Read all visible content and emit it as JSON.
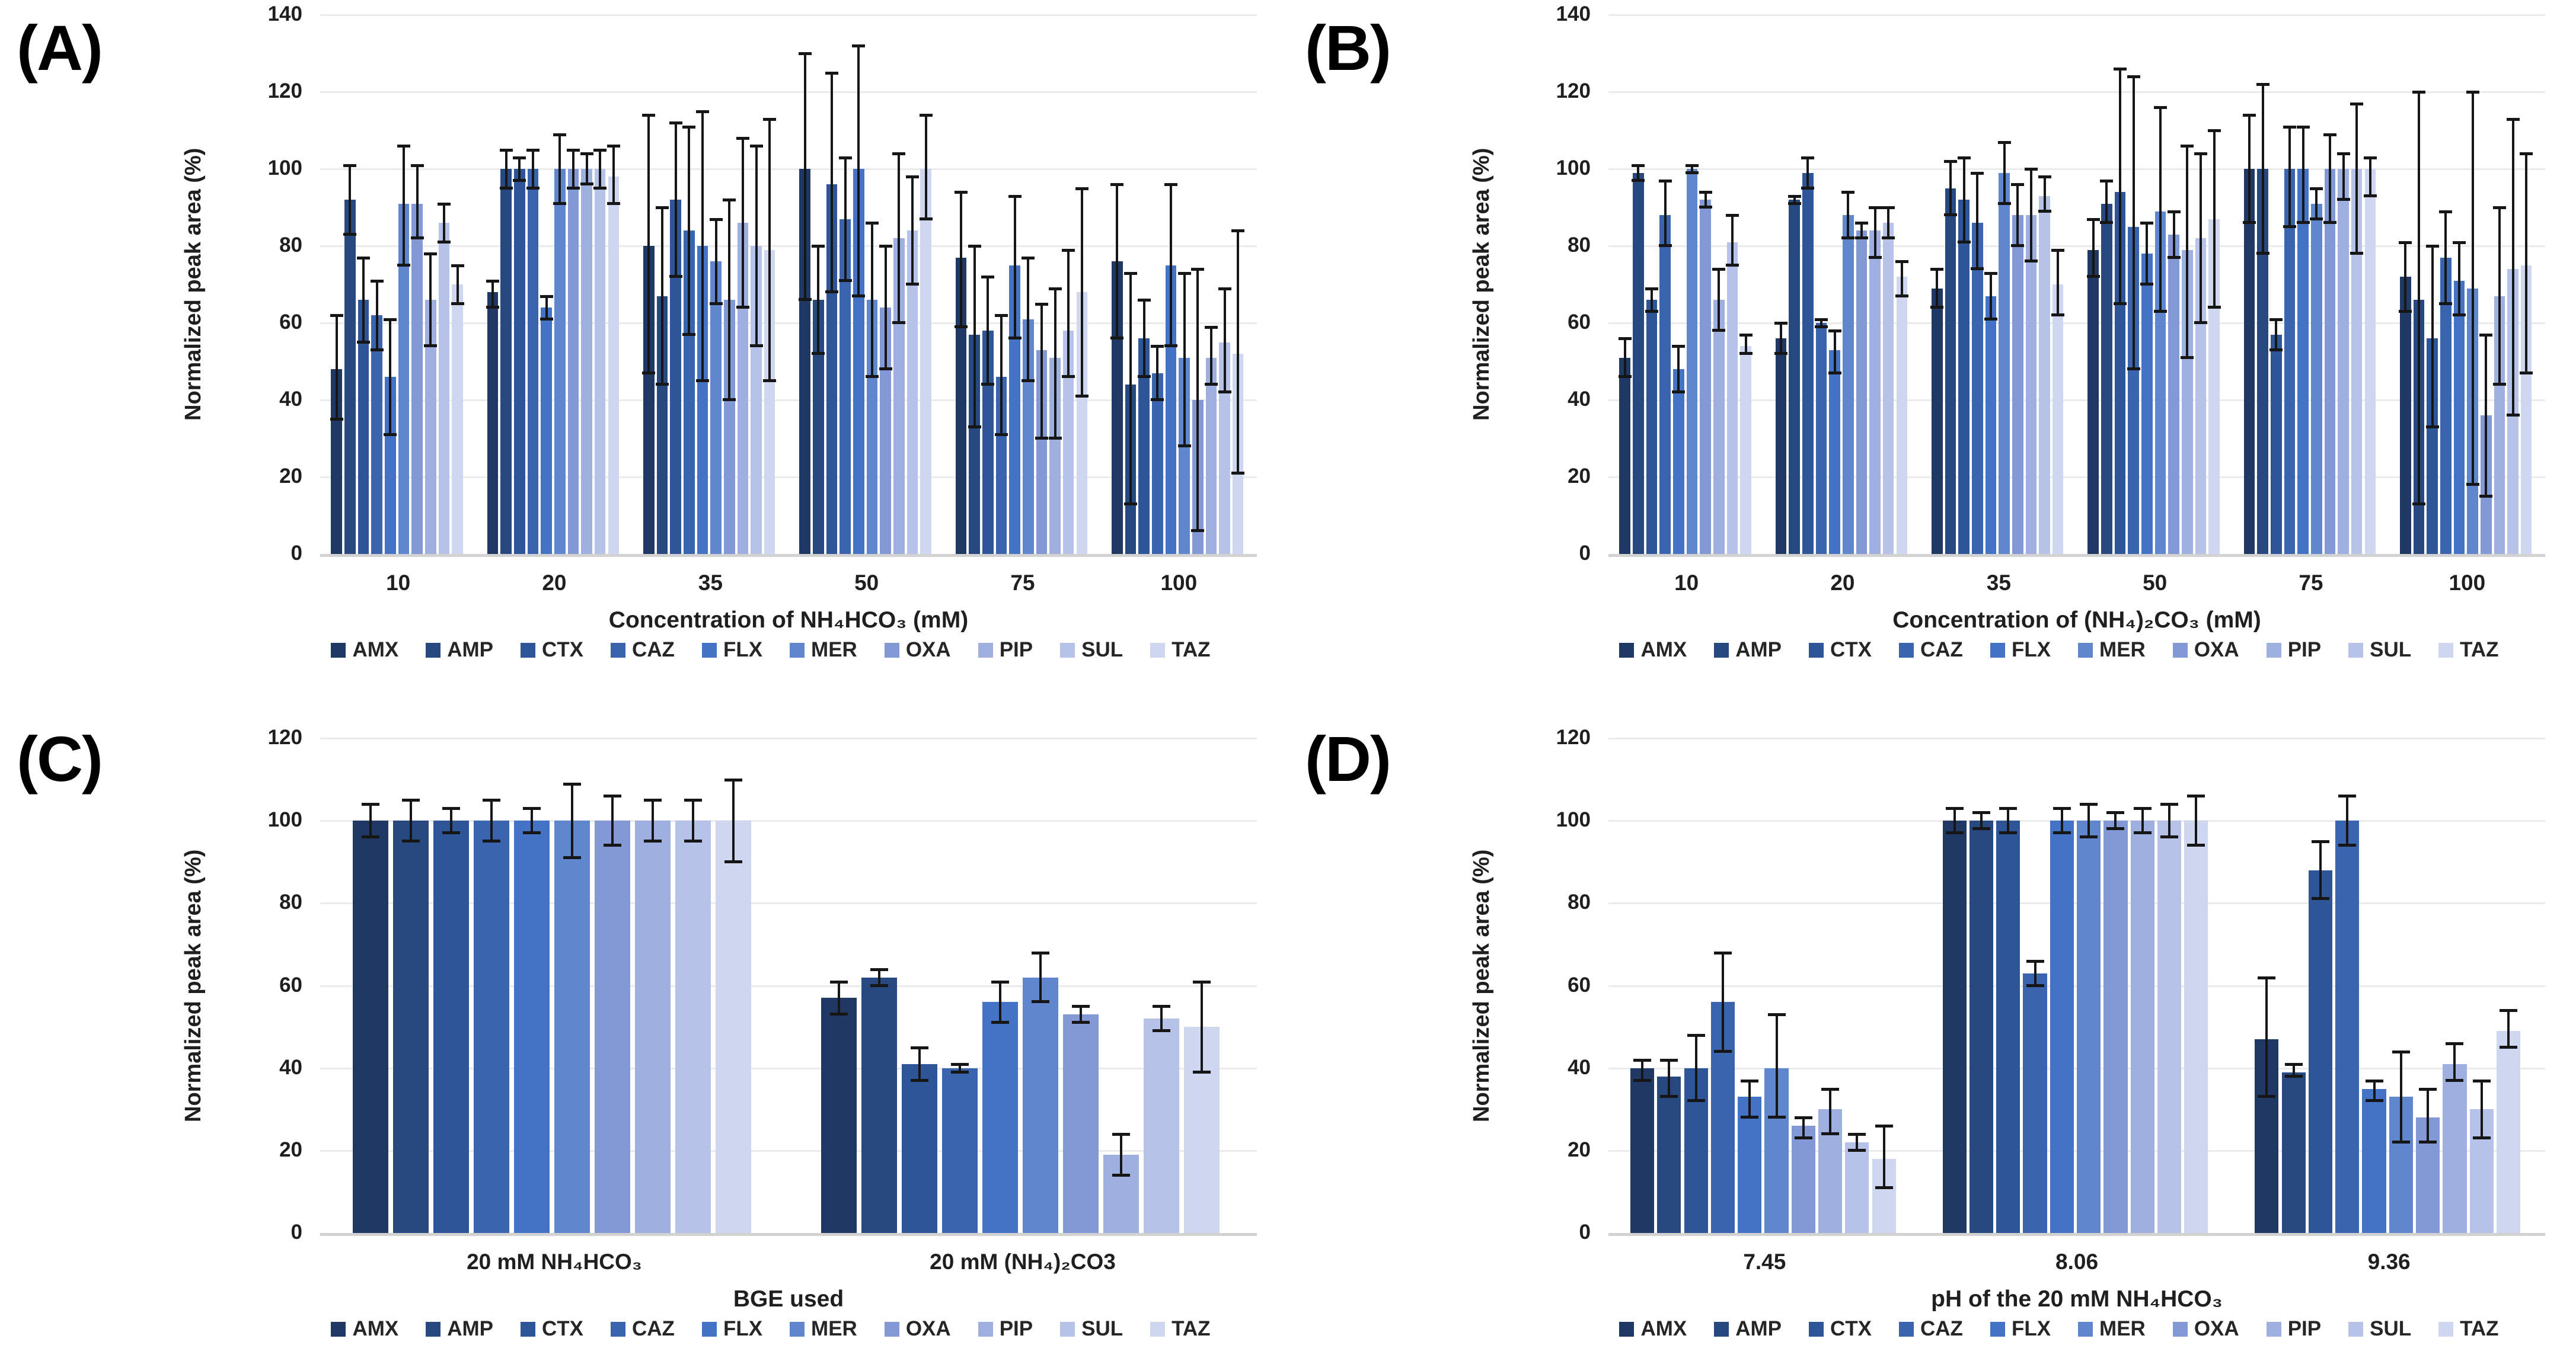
{
  "figure": {
    "background": "#ffffff",
    "error_bar_color": "#161616",
    "gridline_color": "#ebebeb",
    "axis_line_color": "#d2d2d2"
  },
  "series_names": [
    "AMX",
    "AMP",
    "CTX",
    "CAZ",
    "FLX",
    "MER",
    "OXA",
    "PIP",
    "SUL",
    "TAZ"
  ],
  "series_colors": [
    "#203864",
    "#27497F",
    "#2E5597",
    "#3A64AE",
    "#4472C4",
    "#6086CE",
    "#8399D6",
    "#9FAFDF",
    "#B7C2E8",
    "#CFD7F0"
  ],
  "chart_data": [
    {
      "id": "a",
      "panel_label": "(A)",
      "type": "bar",
      "title": "",
      "ylabel": "Normalized peak area (%)",
      "xlabel": "Concentration of NH₄HCO₃ (mM)",
      "ylim": [
        0,
        140
      ],
      "ytick_step": 20,
      "grid": true,
      "legend_position": "bottom",
      "categories": [
        "10",
        "20",
        "35",
        "50",
        "75",
        "100"
      ],
      "series": [
        {
          "name": "AMX",
          "color": "#203864",
          "values": [
            48,
            68,
            80,
            100,
            77,
            76
          ],
          "err_lo": [
            35,
            64,
            47,
            66,
            59,
            56
          ],
          "err_hi": [
            62,
            71,
            114,
            130,
            94,
            96
          ]
        },
        {
          "name": "AMP",
          "color": "#27497F",
          "values": [
            92,
            100,
            67,
            66,
            57,
            44
          ],
          "err_lo": [
            83,
            95,
            44,
            52,
            33,
            13
          ],
          "err_hi": [
            101,
            105,
            90,
            80,
            80,
            73
          ]
        },
        {
          "name": "CTX",
          "color": "#2E5597",
          "values": [
            66,
            100,
            92,
            96,
            58,
            56
          ],
          "err_lo": [
            55,
            97,
            72,
            68,
            44,
            46
          ],
          "err_hi": [
            77,
            103,
            112,
            125,
            72,
            66
          ]
        },
        {
          "name": "CAZ",
          "color": "#3A64AE",
          "values": [
            62,
            100,
            84,
            87,
            46,
            47
          ],
          "err_lo": [
            53,
            95,
            57,
            71,
            31,
            40
          ],
          "err_hi": [
            71,
            105,
            111,
            103,
            62,
            54
          ]
        },
        {
          "name": "FLX",
          "color": "#4472C4",
          "values": [
            46,
            64,
            80,
            100,
            75,
            75
          ],
          "err_lo": [
            31,
            61,
            45,
            67,
            56,
            54
          ],
          "err_hi": [
            61,
            67,
            115,
            132,
            93,
            96
          ]
        },
        {
          "name": "MER",
          "color": "#6086CE",
          "values": [
            91,
            100,
            76,
            66,
            61,
            51
          ],
          "err_lo": [
            75,
            91,
            65,
            46,
            45,
            28
          ],
          "err_hi": [
            106,
            109,
            87,
            86,
            77,
            73
          ]
        },
        {
          "name": "OXA",
          "color": "#8399D6",
          "values": [
            91,
            100,
            66,
            64,
            53,
            40
          ],
          "err_lo": [
            82,
            95,
            40,
            48,
            30,
            6
          ],
          "err_hi": [
            101,
            105,
            92,
            80,
            65,
            74
          ]
        },
        {
          "name": "PIP",
          "color": "#9FAFDF",
          "values": [
            66,
            100,
            86,
            82,
            51,
            51
          ],
          "err_lo": [
            54,
            96,
            64,
            60,
            30,
            44
          ],
          "err_hi": [
            78,
            104,
            108,
            104,
            69,
            59
          ]
        },
        {
          "name": "SUL",
          "color": "#B7C2E8",
          "values": [
            86,
            100,
            80,
            84,
            58,
            55
          ],
          "err_lo": [
            81,
            95,
            54,
            70,
            46,
            42
          ],
          "err_hi": [
            91,
            105,
            106,
            98,
            79,
            69
          ]
        },
        {
          "name": "TAZ",
          "color": "#CFD7F0",
          "values": [
            70,
            98,
            79,
            100,
            68,
            52
          ],
          "err_lo": [
            65,
            91,
            45,
            87,
            41,
            21
          ],
          "err_hi": [
            75,
            106,
            113,
            114,
            95,
            84
          ]
        }
      ]
    },
    {
      "id": "b",
      "panel_label": "(B)",
      "type": "bar",
      "title": "",
      "ylabel": "Normalized peak area (%)",
      "xlabel": "Concentration of (NH₄)₂CO₃ (mM)",
      "ylim": [
        0,
        140
      ],
      "ytick_step": 20,
      "grid": true,
      "legend_position": "bottom",
      "categories": [
        "10",
        "20",
        "35",
        "50",
        "75",
        "100"
      ],
      "series": [
        {
          "name": "AMX",
          "color": "#203864",
          "values": [
            51,
            56,
            69,
            79,
            100,
            72
          ],
          "err_lo": [
            46,
            52,
            64,
            72,
            86,
            63
          ],
          "err_hi": [
            56,
            60,
            74,
            87,
            114,
            81
          ]
        },
        {
          "name": "AMP",
          "color": "#27497F",
          "values": [
            99,
            92,
            95,
            91,
            100,
            66
          ],
          "err_lo": [
            97,
            91,
            88,
            86,
            78,
            13
          ],
          "err_hi": [
            101,
            93,
            102,
            97,
            122,
            120
          ]
        },
        {
          "name": "CTX",
          "color": "#2E5597",
          "values": [
            66,
            99,
            92,
            94,
            57,
            56
          ],
          "err_lo": [
            63,
            95,
            81,
            65,
            53,
            33
          ],
          "err_hi": [
            69,
            103,
            103,
            126,
            61,
            80
          ]
        },
        {
          "name": "CAZ",
          "color": "#3A64AE",
          "values": [
            88,
            60,
            86,
            85,
            100,
            77
          ],
          "err_lo": [
            80,
            59,
            74,
            48,
            85,
            65
          ],
          "err_hi": [
            97,
            61,
            99,
            124,
            111,
            89
          ]
        },
        {
          "name": "FLX",
          "color": "#4472C4",
          "values": [
            48,
            53,
            67,
            78,
            100,
            71
          ],
          "err_lo": [
            42,
            47,
            61,
            70,
            86,
            62
          ],
          "err_hi": [
            54,
            58,
            73,
            86,
            111,
            81
          ]
        },
        {
          "name": "MER",
          "color": "#6086CE",
          "values": [
            100,
            88,
            99,
            89,
            91,
            69
          ],
          "err_lo": [
            99,
            82,
            91,
            63,
            87,
            18
          ],
          "err_hi": [
            101,
            94,
            107,
            116,
            95,
            120
          ]
        },
        {
          "name": "OXA",
          "color": "#8399D6",
          "values": [
            92,
            84,
            88,
            83,
            100,
            36
          ],
          "err_lo": [
            90,
            82,
            80,
            77,
            86,
            15
          ],
          "err_hi": [
            94,
            86,
            96,
            89,
            109,
            57
          ]
        },
        {
          "name": "PIP",
          "color": "#9FAFDF",
          "values": [
            66,
            84,
            88,
            79,
            100,
            67
          ],
          "err_lo": [
            58,
            77,
            76,
            51,
            92,
            44
          ],
          "err_hi": [
            74,
            90,
            100,
            106,
            104,
            90
          ]
        },
        {
          "name": "SUL",
          "color": "#B7C2E8",
          "values": [
            81,
            86,
            93,
            82,
            100,
            74
          ],
          "err_lo": [
            75,
            82,
            89,
            60,
            78,
            36
          ],
          "err_hi": [
            88,
            90,
            98,
            104,
            117,
            113
          ]
        },
        {
          "name": "TAZ",
          "color": "#CFD7F0",
          "values": [
            54,
            72,
            70,
            87,
            100,
            75
          ],
          "err_lo": [
            52,
            67,
            62,
            64,
            93,
            47
          ],
          "err_hi": [
            57,
            76,
            79,
            110,
            103,
            104
          ]
        }
      ]
    },
    {
      "id": "c",
      "panel_label": "(C)",
      "type": "bar",
      "title": "",
      "ylabel": "Normalized peak area (%)",
      "xlabel": "BGE used",
      "ylim": [
        0,
        120
      ],
      "ytick_step": 20,
      "grid": true,
      "legend_position": "bottom",
      "categories": [
        "20 mM NH₄HCO₃",
        "20 mM (NH₄)₂CO3"
      ],
      "series": [
        {
          "name": "AMX",
          "color": "#203864",
          "values": [
            100,
            57
          ],
          "err_lo": [
            96,
            53
          ],
          "err_hi": [
            104,
            61
          ]
        },
        {
          "name": "AMP",
          "color": "#27497F",
          "values": [
            100,
            62
          ],
          "err_lo": [
            95,
            60
          ],
          "err_hi": [
            105,
            64
          ]
        },
        {
          "name": "CTX",
          "color": "#2E5597",
          "values": [
            100,
            41
          ],
          "err_lo": [
            97,
            37
          ],
          "err_hi": [
            103,
            45
          ]
        },
        {
          "name": "CAZ",
          "color": "#3A64AE",
          "values": [
            100,
            40
          ],
          "err_lo": [
            95,
            39
          ],
          "err_hi": [
            105,
            41
          ]
        },
        {
          "name": "FLX",
          "color": "#4472C4",
          "values": [
            100,
            56
          ],
          "err_lo": [
            97,
            51
          ],
          "err_hi": [
            103,
            61
          ]
        },
        {
          "name": "MER",
          "color": "#6086CE",
          "values": [
            100,
            62
          ],
          "err_lo": [
            91,
            56
          ],
          "err_hi": [
            109,
            68
          ]
        },
        {
          "name": "OXA",
          "color": "#8399D6",
          "values": [
            100,
            53
          ],
          "err_lo": [
            94,
            51
          ],
          "err_hi": [
            106,
            55
          ]
        },
        {
          "name": "PIP",
          "color": "#9FAFDF",
          "values": [
            100,
            19
          ],
          "err_lo": [
            95,
            14
          ],
          "err_hi": [
            105,
            24
          ]
        },
        {
          "name": "SUL",
          "color": "#B7C2E8",
          "values": [
            100,
            52
          ],
          "err_lo": [
            95,
            49
          ],
          "err_hi": [
            105,
            55
          ]
        },
        {
          "name": "TAZ",
          "color": "#CFD7F0",
          "values": [
            100,
            50
          ],
          "err_lo": [
            90,
            39
          ],
          "err_hi": [
            110,
            61
          ]
        }
      ]
    },
    {
      "id": "d",
      "panel_label": "(D)",
      "type": "bar",
      "title": "",
      "ylabel": "Normalized peak area (%)",
      "xlabel": "pH of the 20 mM NH₄HCO₃",
      "ylim": [
        0,
        120
      ],
      "ytick_step": 20,
      "grid": true,
      "legend_position": "bottom",
      "categories": [
        "7.45",
        "8.06",
        "9.36"
      ],
      "series": [
        {
          "name": "AMX",
          "color": "#203864",
          "values": [
            40,
            100,
            47
          ],
          "err_lo": [
            37,
            97,
            33
          ],
          "err_hi": [
            42,
            103,
            62
          ]
        },
        {
          "name": "AMP",
          "color": "#27497F",
          "values": [
            38,
            100,
            39
          ],
          "err_lo": [
            33,
            98,
            38
          ],
          "err_hi": [
            42,
            102,
            41
          ]
        },
        {
          "name": "CTX",
          "color": "#2E5597",
          "values": [
            40,
            100,
            88
          ],
          "err_lo": [
            32,
            97,
            81
          ],
          "err_hi": [
            48,
            103,
            95
          ]
        },
        {
          "name": "CAZ",
          "color": "#3A64AE",
          "values": [
            56,
            63,
            100
          ],
          "err_lo": [
            44,
            60,
            94
          ],
          "err_hi": [
            68,
            66,
            106
          ]
        },
        {
          "name": "FLX",
          "color": "#4472C4",
          "values": [
            33,
            100,
            35
          ],
          "err_lo": [
            28,
            97,
            32
          ],
          "err_hi": [
            37,
            103,
            37
          ]
        },
        {
          "name": "MER",
          "color": "#6086CE",
          "values": [
            40,
            100,
            33
          ],
          "err_lo": [
            28,
            96,
            22
          ],
          "err_hi": [
            53,
            104,
            44
          ]
        },
        {
          "name": "OXA",
          "color": "#8399D6",
          "values": [
            26,
            100,
            28
          ],
          "err_lo": [
            23,
            98,
            22
          ],
          "err_hi": [
            28,
            102,
            35
          ]
        },
        {
          "name": "PIP",
          "color": "#9FAFDF",
          "values": [
            30,
            100,
            41
          ],
          "err_lo": [
            24,
            97,
            37
          ],
          "err_hi": [
            35,
            103,
            46
          ]
        },
        {
          "name": "SUL",
          "color": "#B7C2E8",
          "values": [
            22,
            100,
            30
          ],
          "err_lo": [
            20,
            96,
            23
          ],
          "err_hi": [
            24,
            104,
            37
          ]
        },
        {
          "name": "TAZ",
          "color": "#CFD7F0",
          "values": [
            18,
            100,
            49
          ],
          "err_lo": [
            11,
            94,
            45
          ],
          "err_hi": [
            26,
            106,
            54
          ]
        }
      ]
    }
  ]
}
